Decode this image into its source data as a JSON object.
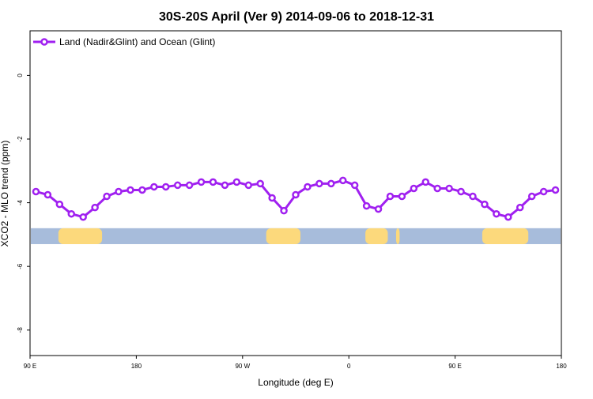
{
  "chart_data": {
    "type": "line",
    "title": "30S-20S April (Ver 9)   2014-09-06 to 2018-12-31",
    "xlabel": "Longitude (deg E)",
    "ylabel": "XCO2 - MLO trend (ppm)",
    "xlim": [
      90,
      540
    ],
    "ylim": [
      -8.8,
      1.4
    ],
    "x_ticks": [
      {
        "value": 90,
        "label": "90 E"
      },
      {
        "value": 180,
        "label": "180"
      },
      {
        "value": 270,
        "label": "90 W"
      },
      {
        "value": 360,
        "label": "0"
      },
      {
        "value": 450,
        "label": "90 E"
      },
      {
        "value": 540,
        "label": "180"
      }
    ],
    "y_ticks": [
      {
        "value": 0,
        "label": "0"
      },
      {
        "value": -2,
        "label": "-2"
      },
      {
        "value": -4,
        "label": "-4"
      },
      {
        "value": -6,
        "label": "-6"
      },
      {
        "value": -8,
        "label": "-8"
      }
    ],
    "legend_position": "top-left",
    "series": [
      {
        "name": "Land (Nadir&Glint) and Ocean (Glint)",
        "color": "#a020f0",
        "marker": "open-circle",
        "x": [
          95,
          105,
          115,
          125,
          135,
          145,
          155,
          165,
          175,
          185,
          195,
          205,
          215,
          225,
          235,
          245,
          255,
          265,
          275,
          285,
          295,
          305,
          315,
          325,
          335,
          345,
          355,
          365,
          375,
          385,
          395,
          405,
          415,
          425,
          435,
          445,
          455,
          465,
          475,
          485,
          495,
          505,
          515,
          525,
          535
        ],
        "y": [
          -3.65,
          -3.75,
          -4.05,
          -4.35,
          -4.45,
          -4.15,
          -3.8,
          -3.65,
          -3.6,
          -3.6,
          -3.5,
          -3.5,
          -3.45,
          -3.45,
          -3.35,
          -3.35,
          -3.45,
          -3.35,
          -3.45,
          -3.4,
          -3.85,
          -4.25,
          -3.75,
          -3.5,
          -3.4,
          -3.4,
          -3.3,
          -3.45,
          -4.1,
          -4.2,
          -3.8,
          -3.8,
          -3.55,
          -3.35,
          -3.55,
          -3.55,
          -3.65,
          -3.8,
          -4.05,
          -4.35,
          -4.45,
          -4.15,
          -3.8,
          -3.65,
          -3.6
        ]
      }
    ],
    "map_strip": {
      "y_range": [
        -4.8,
        -5.3
      ],
      "ocean_color": "#a7bcdb",
      "land_color": "#fcd97c",
      "land_segments": [
        [
          114,
          151
        ],
        [
          290,
          319
        ],
        [
          374,
          393
        ],
        [
          400,
          403
        ],
        [
          473,
          512
        ]
      ]
    }
  }
}
